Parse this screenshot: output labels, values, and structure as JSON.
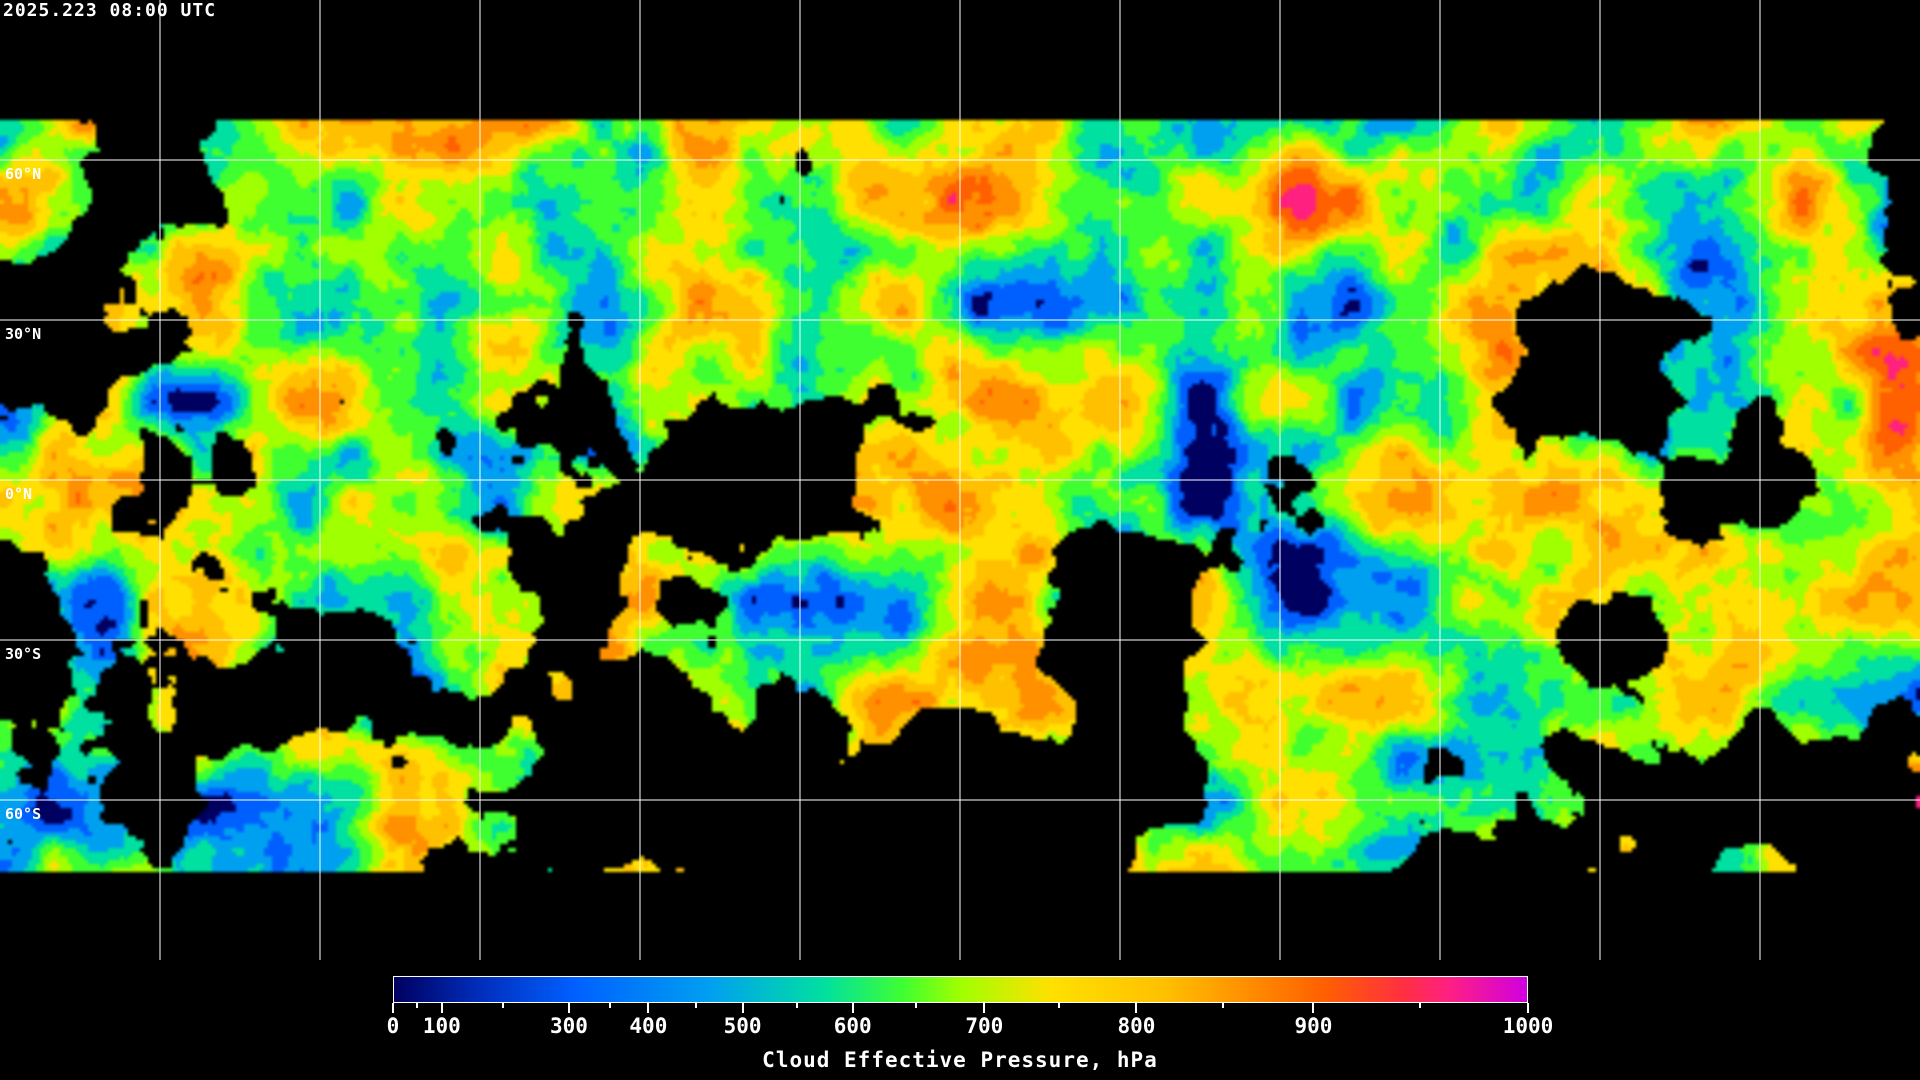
{
  "timestamp": "2025.223 08:00 UTC",
  "map": {
    "projection": "equirectangular",
    "graticule_spacing_deg": 30,
    "lat_labels": [
      "60°N",
      "30°N",
      "0°N",
      "30°S",
      "60°S"
    ],
    "background_color": "#000000",
    "coastline_color": "#ffffff"
  },
  "colorbar": {
    "title": "Cloud Effective Pressure, hPa",
    "min": 0,
    "max": 1000,
    "tick_labels": [
      "0",
      "100",
      "300",
      "400",
      "500",
      "600",
      "700",
      "800",
      "900",
      "1000"
    ],
    "colors": [
      "#000060",
      "#0060ff",
      "#00a0f0",
      "#00e0a0",
      "#40ff30",
      "#a0ff00",
      "#ffe000",
      "#ffc000",
      "#ff9000",
      "#ff6000",
      "#ff2080",
      "#d000e0"
    ]
  }
}
